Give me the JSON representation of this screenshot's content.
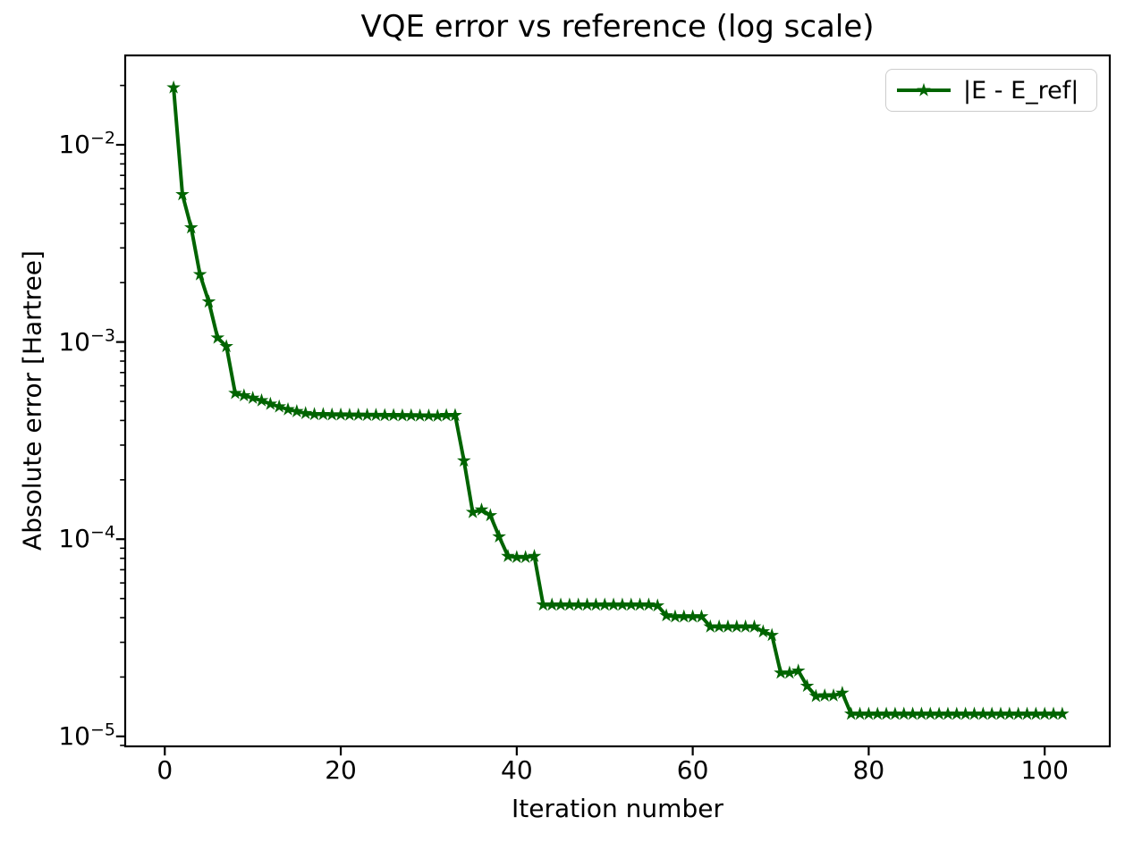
{
  "figure": {
    "title": "VQE error vs reference (log scale)",
    "xlabel": "Iteration number",
    "ylabel": "Absolute error [Hartree]",
    "background_color": "#ffffff",
    "spine_color": "#000000"
  },
  "legend": {
    "label": "|E - E_ref|",
    "position": "upper right",
    "border_color": "#cccccc"
  },
  "chart_data": {
    "type": "line",
    "title": "VQE error vs reference (log scale)",
    "xlabel": "Iteration number",
    "ylabel": "Absolute error [Hartree]",
    "yscale": "log",
    "grid": false,
    "legend_position": "upper right",
    "xticks": [
      0,
      20,
      40,
      60,
      80,
      100
    ],
    "ytick_exponents": [
      -2,
      -3,
      -4,
      -5
    ],
    "xlim": [
      -4.5,
      107.4
    ],
    "ylim": [
      8.9e-06,
      0.0284
    ],
    "series": [
      {
        "name": "|E - E_ref|",
        "color": "#006400",
        "marker": "star",
        "x": [
          1,
          2,
          3,
          4,
          5,
          6,
          7,
          8,
          9,
          10,
          11,
          12,
          13,
          14,
          15,
          16,
          17,
          18,
          19,
          20,
          21,
          22,
          23,
          24,
          25,
          26,
          27,
          28,
          29,
          30,
          31,
          32,
          33,
          34,
          35,
          36,
          37,
          38,
          39,
          40,
          41,
          42,
          43,
          44,
          45,
          46,
          47,
          48,
          49,
          50,
          51,
          52,
          53,
          54,
          55,
          56,
          57,
          58,
          59,
          60,
          61,
          62,
          63,
          64,
          65,
          66,
          67,
          68,
          69,
          70,
          71,
          72,
          73,
          74,
          75,
          76,
          77,
          78,
          79,
          80,
          81,
          82,
          83,
          84,
          85,
          86,
          87,
          88,
          89,
          90,
          91,
          92,
          93,
          94,
          95,
          96,
          97,
          98,
          99,
          100,
          101,
          102
        ],
        "y": [
          0.0195,
          0.0056,
          0.0038,
          0.0022,
          0.0016,
          0.00105,
          0.00095,
          0.00055,
          0.000535,
          0.00052,
          0.000505,
          0.000485,
          0.00047,
          0.000455,
          0.000445,
          0.000435,
          0.00043,
          0.00043,
          0.000428,
          0.000428,
          0.000427,
          0.000427,
          0.000426,
          0.000426,
          0.000425,
          0.000425,
          0.000424,
          0.000424,
          0.000423,
          0.000423,
          0.000422,
          0.000425,
          0.000425,
          0.00025,
          0.000137,
          0.000141,
          0.000132,
          0.000103,
          8.2e-05,
          8.1e-05,
          8.1e-05,
          8.2e-05,
          4.65e-05,
          4.65e-05,
          4.65e-05,
          4.65e-05,
          4.65e-05,
          4.65e-05,
          4.65e-05,
          4.65e-05,
          4.65e-05,
          4.65e-05,
          4.65e-05,
          4.65e-05,
          4.65e-05,
          4.6e-05,
          4.1e-05,
          4.05e-05,
          4.05e-05,
          4.05e-05,
          4.05e-05,
          3.6e-05,
          3.6e-05,
          3.6e-05,
          3.6e-05,
          3.6e-05,
          3.6e-05,
          3.4e-05,
          3.26e-05,
          2.1e-05,
          2.1e-05,
          2.15e-05,
          1.8e-05,
          1.6e-05,
          1.61e-05,
          1.61e-05,
          1.66e-05,
          1.3e-05,
          1.3e-05,
          1.3e-05,
          1.3e-05,
          1.3e-05,
          1.3e-05,
          1.3e-05,
          1.3e-05,
          1.3e-05,
          1.3e-05,
          1.3e-05,
          1.3e-05,
          1.3e-05,
          1.3e-05,
          1.3e-05,
          1.3e-05,
          1.3e-05,
          1.3e-05,
          1.3e-05,
          1.3e-05,
          1.3e-05,
          1.3e-05,
          1.3e-05,
          1.3e-05,
          1.3e-05
        ]
      }
    ]
  }
}
